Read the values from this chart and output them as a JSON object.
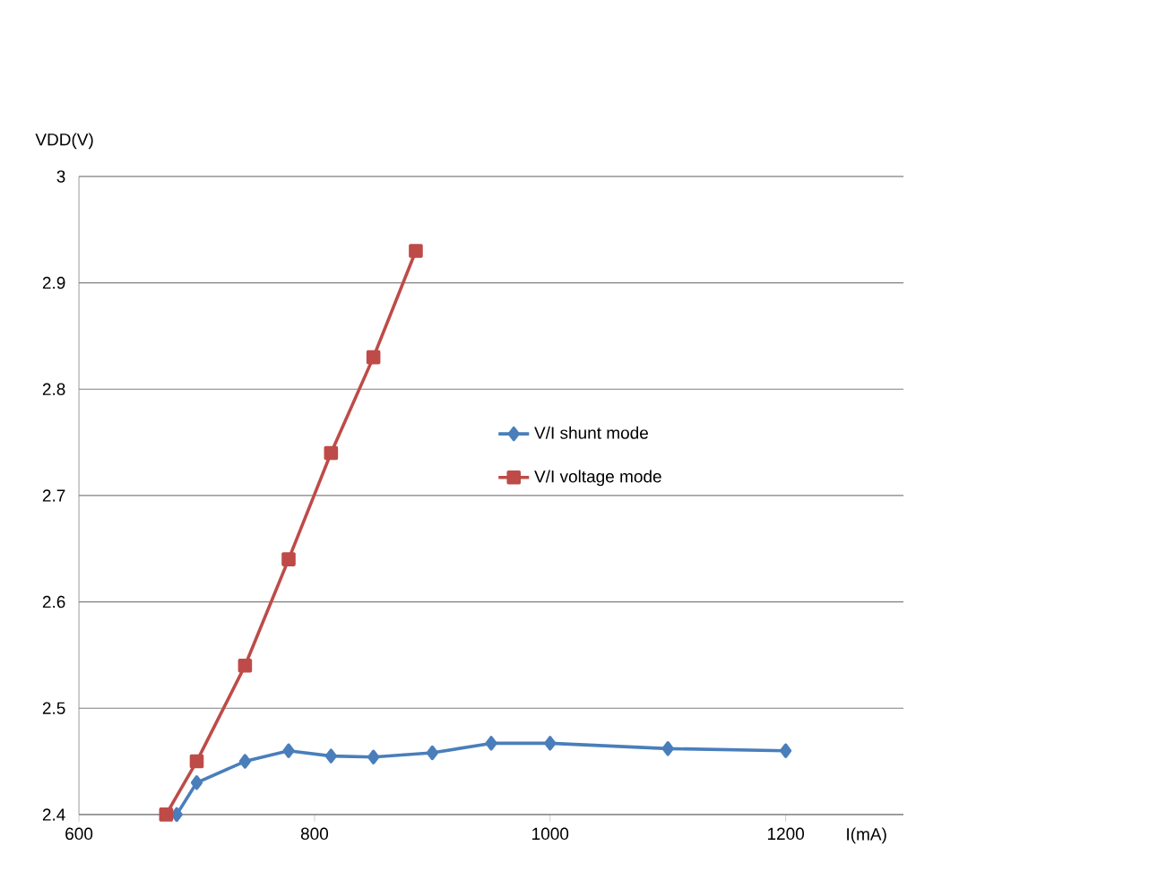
{
  "chart_data": {
    "type": "line",
    "xlabel": "I(mA)",
    "ylabel": "VDD(V)",
    "xlim": [
      600,
      1300
    ],
    "xticks": [
      600,
      800,
      1000,
      1200
    ],
    "ylim": [
      2.4,
      3
    ],
    "yticks": [
      2.4,
      2.5,
      2.6,
      2.7,
      2.8,
      2.9,
      3
    ],
    "grid": "y",
    "legend": "right",
    "series": [
      {
        "name": "V/I  shunt mode",
        "color": "#4a7ebb",
        "marker": "diamond",
        "x": [
          683,
          700,
          741,
          778,
          814,
          850,
          900,
          950,
          1000,
          1100,
          1200
        ],
        "values": [
          2.4,
          2.43,
          2.45,
          2.46,
          2.455,
          2.454,
          2.458,
          2.467,
          2.467,
          2.462,
          2.46
        ]
      },
      {
        "name": "V/I voltage mode",
        "color": "#be4b48",
        "marker": "square",
        "x": [
          674,
          700,
          741,
          778,
          814,
          850,
          886
        ],
        "values": [
          2.4,
          2.45,
          2.54,
          2.64,
          2.74,
          2.83,
          2.93
        ]
      }
    ]
  }
}
